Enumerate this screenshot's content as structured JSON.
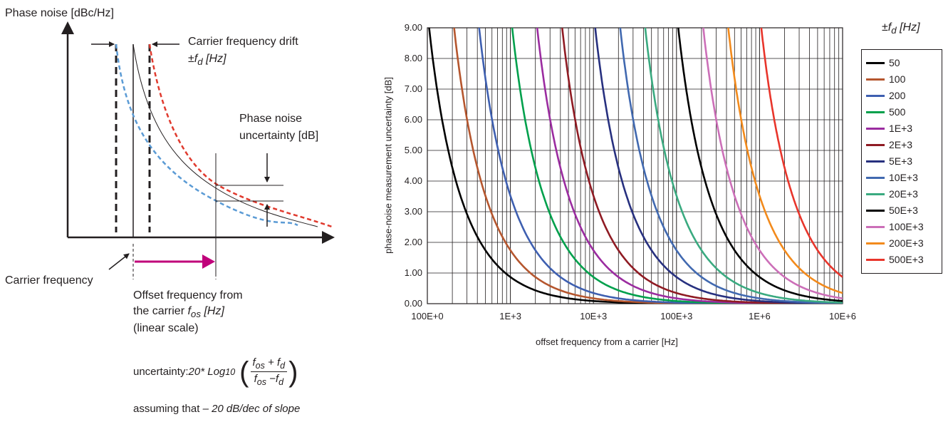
{
  "diagram": {
    "y_axis_label": "Phase noise [dBc/Hz]",
    "drift_label_line1": "Carrier frequency drift",
    "drift_label_line2": "±f",
    "drift_sub": "d",
    "drift_unit": " [Hz]",
    "uncertainty_line1": "Phase noise",
    "uncertainty_line2": "uncertainty [dB]",
    "carrier_label": "Carrier frequency",
    "offset_line1": "Offset frequency from",
    "offset_line2_prefix": "the carrier ",
    "offset_f": "f",
    "offset_sub": "os",
    "offset_unit": " [Hz]",
    "offset_line3": "(linear scale)",
    "formula_prefix": "uncertainty: ",
    "formula_mult": "20* Log",
    "formula_base": "10",
    "formula_num": "f",
    "formula_num_sub1": "os",
    "formula_num_op": " + f",
    "formula_num_sub2": "d",
    "formula_den": "f",
    "formula_den_sub1": "os",
    "formula_den_op": " −f",
    "formula_den_sub2": "d",
    "assumption_prefix": "assuming that ",
    "assumption_em": "– 20 dB/dec of slope",
    "colors": {
      "dashed_blue": "#5b9bd5",
      "dashed_red": "#e03a2e",
      "arrow_magenta": "#c0007a"
    }
  },
  "chart_data": {
    "type": "line",
    "title": "",
    "xlabel": "offset frequency from a carrier [Hz]",
    "ylabel": "phase-noise measurement uncertainty [dB]",
    "x_scale": "log",
    "xlim": [
      100,
      10000000
    ],
    "ylim": [
      0,
      9
    ],
    "x_ticks": [
      "100E+0",
      "1E+3",
      "10E+3",
      "100E+3",
      "1E+6",
      "10E+6"
    ],
    "y_ticks": [
      "0.00",
      "1.00",
      "2.00",
      "3.00",
      "4.00",
      "5.00",
      "6.00",
      "7.00",
      "8.00",
      "9.00"
    ],
    "grid": true,
    "legend_title": "±f",
    "legend_title_sub": "d",
    "legend_title_unit": " [Hz]",
    "legend_position": "right",
    "formula": "20*log10((fos+fd)/(fos-fd))",
    "series": [
      {
        "name": "50",
        "fd": 50,
        "color": "#000000"
      },
      {
        "name": "100",
        "fd": 100,
        "color": "#b5562e"
      },
      {
        "name": "200",
        "fd": 200,
        "color": "#3e5fb0"
      },
      {
        "name": "500",
        "fd": 500,
        "color": "#00a04c"
      },
      {
        "name": "1E+3",
        "fd": 1000,
        "color": "#9b2ca0"
      },
      {
        "name": "2E+3",
        "fd": 2000,
        "color": "#8f1b23"
      },
      {
        "name": "5E+3",
        "fd": 5000,
        "color": "#27307f"
      },
      {
        "name": "10E+3",
        "fd": 10000,
        "color": "#4169b0"
      },
      {
        "name": "20E+3",
        "fd": 20000,
        "color": "#3aaa80"
      },
      {
        "name": "50E+3",
        "fd": 50000,
        "color": "#000000"
      },
      {
        "name": "100E+3",
        "fd": 100000,
        "color": "#cc6fb8"
      },
      {
        "name": "200E+3",
        "fd": 200000,
        "color": "#f28a1c"
      },
      {
        "name": "500E+3",
        "fd": 500000,
        "color": "#e8352b"
      }
    ]
  }
}
